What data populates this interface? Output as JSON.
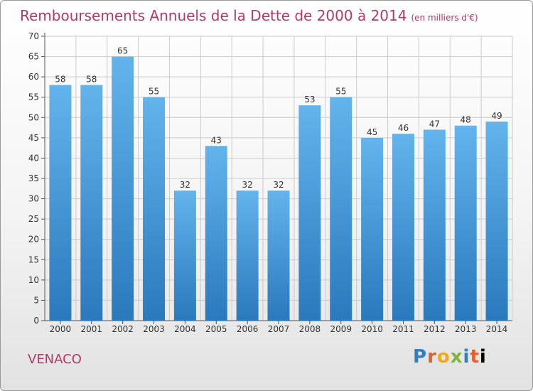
{
  "chart_data": {
    "type": "bar",
    "title": "Remboursements Annuels de la Dette de 2000 à 2014",
    "subtitle": "(en milliers d'€)",
    "categories": [
      "2000",
      "2001",
      "2002",
      "2003",
      "2004",
      "2005",
      "2006",
      "2007",
      "2008",
      "2009",
      "2010",
      "2011",
      "2012",
      "2013",
      "2014"
    ],
    "values": [
      58,
      58,
      65,
      55,
      32,
      43,
      32,
      32,
      53,
      55,
      45,
      46,
      47,
      48,
      49
    ],
    "ylim": [
      0,
      70
    ],
    "ytick_step": 5,
    "grid": true,
    "xlabel": "",
    "ylabel": ""
  },
  "commune": "VENACO",
  "logo": "Proxiti",
  "colors": {
    "bar_top": "#63b4ec",
    "bar_bottom": "#2979bd",
    "title": "#b03a6a",
    "grid": "#cccccc"
  }
}
